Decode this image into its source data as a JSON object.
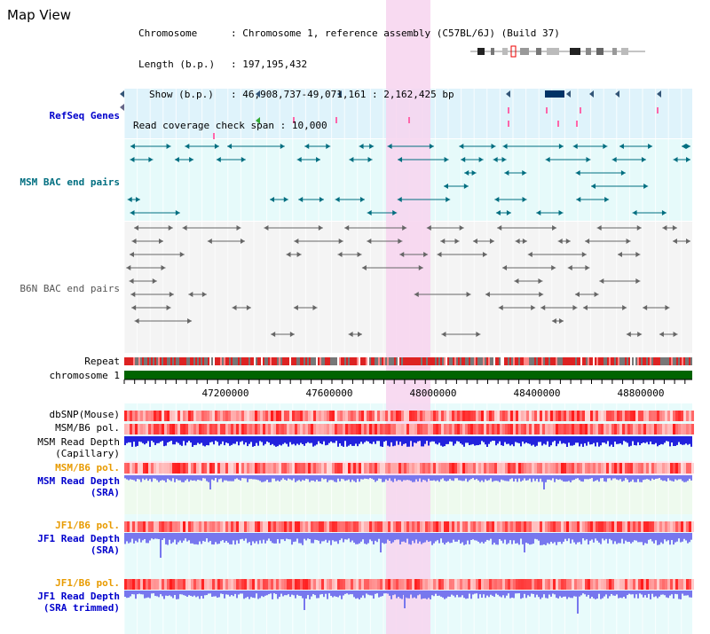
{
  "title": "Map View",
  "info": {
    "chromosome_label": "Chromosome",
    "chromosome_value": "Chromosome 1, reference assembly (C57BL/6J) (Build 37)",
    "length_label": "Length (b.p.)",
    "length_value": "197,195,432",
    "show_label": "Show (b.p.)",
    "show_value": "46,908,737-49,071,161 : 2,162,425 bp",
    "span_label": "Read coverage check span",
    "span_value": "10,000"
  },
  "tracks": {
    "refseq": "RefSeq Genes",
    "msm_bac": "MSM BAC end pairs",
    "b6n_bac": "B6N BAC end pairs",
    "repeat": "Repeat",
    "chromosome": "chromosome 1",
    "dbsnp": "dbSNP(Mouse)",
    "msm_pol1": "MSM/B6 pol.",
    "msm_read_cap_1": "MSM Read Depth",
    "msm_read_cap_2": "(Capillary)",
    "msm_pol2": "MSM/B6 pol.",
    "msm_read_sra_1": "MSM Read Depth",
    "msm_read_sra_2": "(SRA)",
    "jf1_pol1": "JF1/B6 pol.",
    "jf1_read_1": "JF1 Read Depth",
    "jf1_read_2": "(SRA)",
    "jf1_pol2": "JF1/B6 pol.",
    "jf1_trim_1": "JF1 Read Depth",
    "jf1_trim_2": "(SRA trimmed)"
  },
  "axis_ticks": [
    "47200000",
    "47600000",
    "48000000",
    "48400000",
    "48800000"
  ],
  "colors": {
    "refseq_bg": "#dff3fb",
    "bac_bg": "#e6fafa",
    "highlight": "#f7d4ee",
    "chromosome_bar": "#006400",
    "depth_blue": "#2222dd",
    "depth_light": "#7777ee",
    "snp_red": "#ee2222",
    "msm_teal": "#006e80",
    "b6n_gray": "#666666"
  }
}
